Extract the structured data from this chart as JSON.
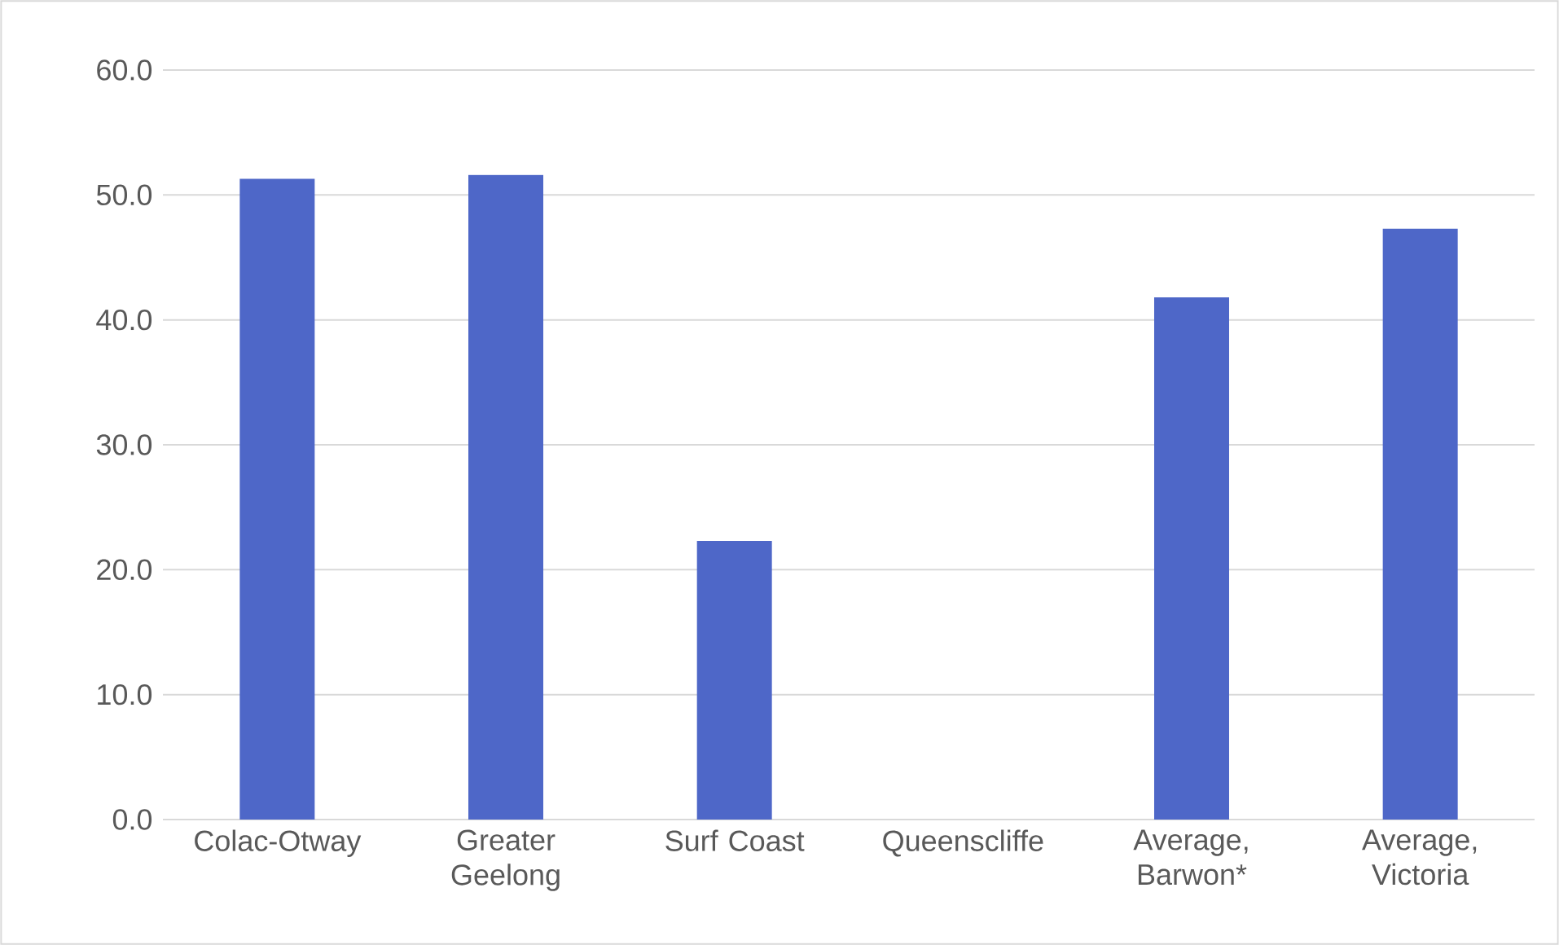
{
  "chart_data": {
    "type": "bar",
    "categories": [
      "Colac-Otway",
      "Greater Geelong",
      "Surf Coast",
      "Queenscliffe",
      "Average, Barwon*",
      "Average, Victoria"
    ],
    "values": [
      51.3,
      51.6,
      22.3,
      null,
      41.8,
      47.3
    ],
    "color": "#4e67c8",
    "ylim": [
      0,
      60
    ],
    "yticks": [
      {
        "value": 0,
        "label": "0.0"
      },
      {
        "value": 10,
        "label": "10.0"
      },
      {
        "value": 20,
        "label": "20.0"
      },
      {
        "value": 30,
        "label": "30.0"
      },
      {
        "value": 40,
        "label": "40.0"
      },
      {
        "value": 50,
        "label": "50.0"
      },
      {
        "value": 60,
        "label": "60.0"
      }
    ],
    "grid": "y"
  }
}
